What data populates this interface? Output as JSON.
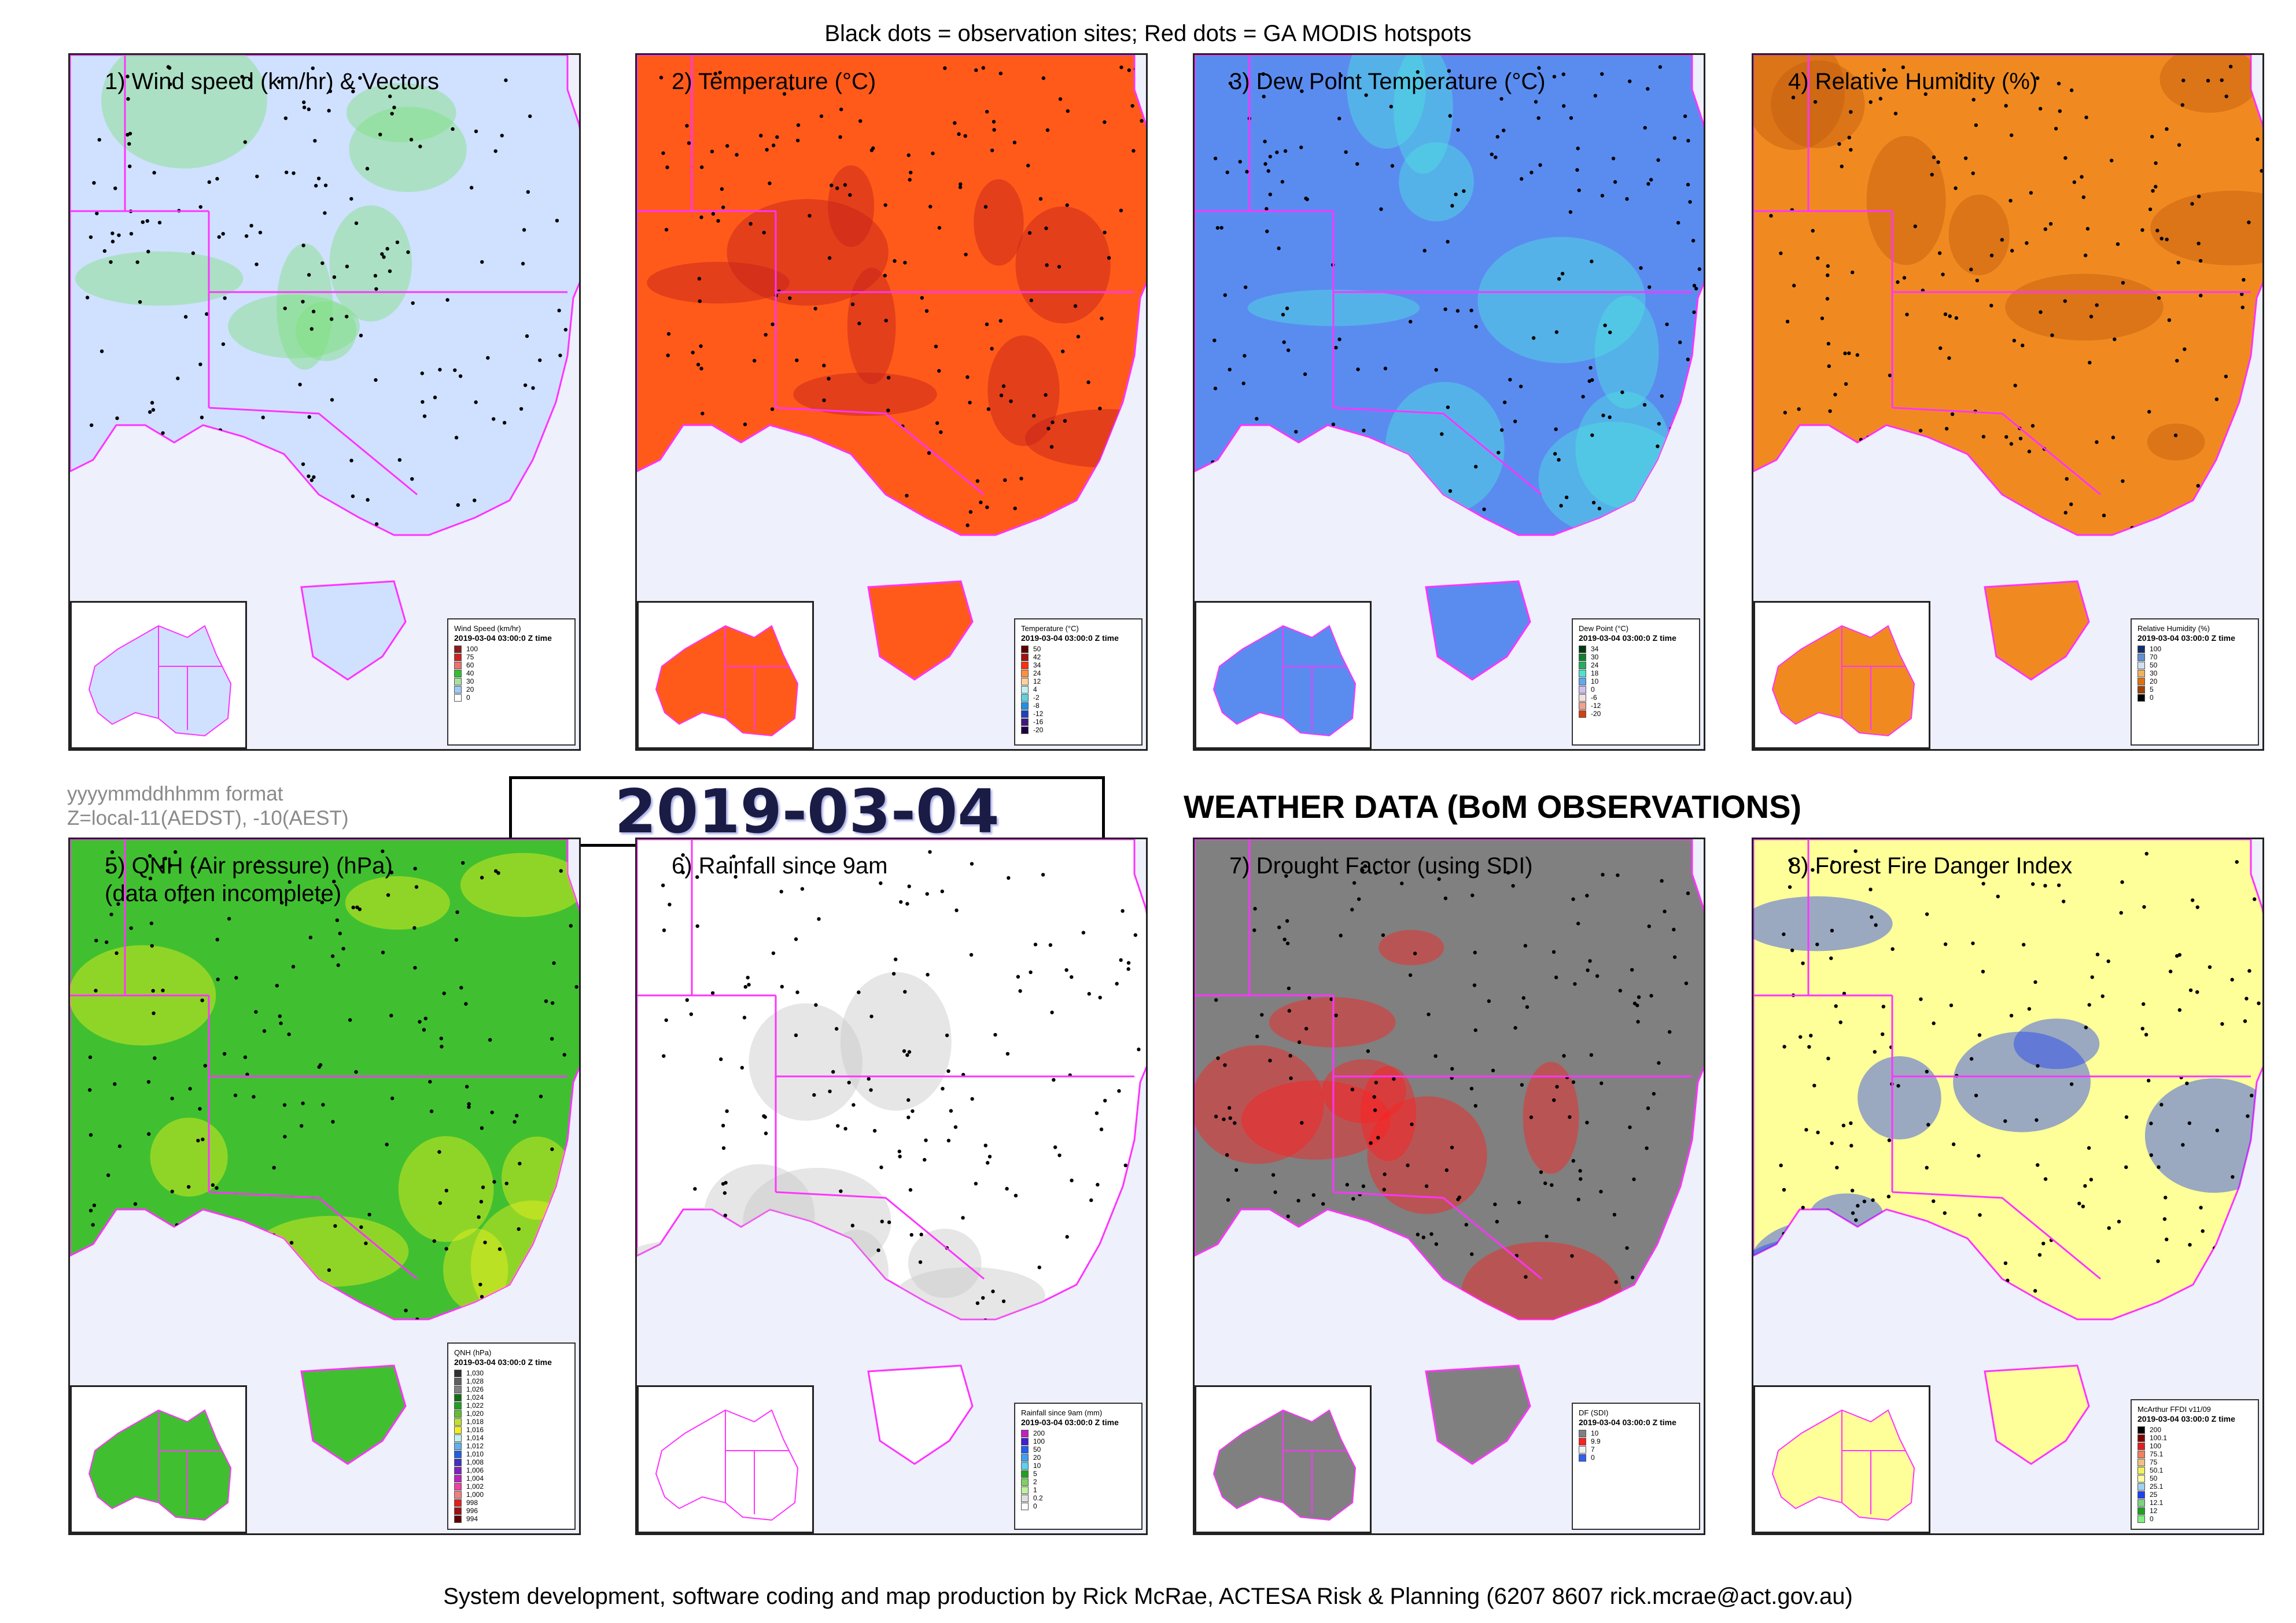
{
  "header": {
    "caption": "Black dots = observation sites; Red dots = GA MODIS hotspots"
  },
  "footer": {
    "credit": "System development, software coding and map production by Rick McRae, ACTESA Risk & Planning (6207 8607 rick.mcrae@act.gov.au)"
  },
  "datetime": {
    "stamp": "2019-03-04 03:00:0",
    "format_line1": "yyyymmddhhmm format",
    "format_line2": "Z=local-11(AEDST), -10(AEST)"
  },
  "heading": "WEATHER DATA (BoM OBSERVATIONS)",
  "colors": {
    "border": "#ff33ff",
    "land_blank": "#ffffff",
    "sea": "#eef0fb"
  },
  "panels": [
    {
      "id": "wind",
      "title": "1) Wind speed (km/hr) & Vectors",
      "fill": "#cfe1ff",
      "accent": "#7fe07f",
      "legend": {
        "title": "Wind Speed (km/hr)",
        "subtitle": "2019-03-04 03:00:0 Z time",
        "items": [
          {
            "label": "100",
            "color": "#8b1a1a"
          },
          {
            "label": "75",
            "color": "#d02020"
          },
          {
            "label": "60",
            "color": "#f07070"
          },
          {
            "label": "40",
            "color": "#30c030"
          },
          {
            "label": "30",
            "color": "#a8e0a0"
          },
          {
            "label": "20",
            "color": "#a0c8f8"
          },
          {
            "label": "0",
            "color": "#ffffff"
          }
        ]
      }
    },
    {
      "id": "temp",
      "title": "2) Temperature (°C)",
      "fill": "#ff5a1a",
      "accent": "#c0201a",
      "legend": {
        "title": "Temperature (°C)",
        "subtitle": "2019-03-04 03:00:0 Z time",
        "items": [
          {
            "label": "50",
            "color": "#5a0000"
          },
          {
            "label": "42",
            "color": "#a01010"
          },
          {
            "label": "34",
            "color": "#ff3010"
          },
          {
            "label": "24",
            "color": "#ff9040"
          },
          {
            "label": "12",
            "color": "#ffd0a0"
          },
          {
            "label": "4",
            "color": "#c0f0f0"
          },
          {
            "label": "-2",
            "color": "#60d0e0"
          },
          {
            "label": "-8",
            "color": "#2090e0"
          },
          {
            "label": "-12",
            "color": "#2040c0"
          },
          {
            "label": "-16",
            "color": "#401880"
          },
          {
            "label": "-20",
            "color": "#200040"
          }
        ]
      }
    },
    {
      "id": "dew",
      "title": "3) Dew Point Temperature (°C)",
      "fill": "#5a8cf0",
      "accent": "#50e0e0",
      "legend": {
        "title": "Dew Point (°C)",
        "subtitle": "2019-03-04 03:00:0 Z time",
        "items": [
          {
            "label": "34",
            "color": "#003a10"
          },
          {
            "label": "30",
            "color": "#108030"
          },
          {
            "label": "24",
            "color": "#20b060"
          },
          {
            "label": "18",
            "color": "#50e0d0"
          },
          {
            "label": "10",
            "color": "#60a8f0"
          },
          {
            "label": "0",
            "color": "#d0c0f0"
          },
          {
            "label": "-6",
            "color": "#f0e0e0"
          },
          {
            "label": "-12",
            "color": "#f0a090"
          },
          {
            "label": "-20",
            "color": "#d04010"
          }
        ]
      }
    },
    {
      "id": "rh",
      "title": "4) Relative Humidity (%)",
      "fill": "#f08a20",
      "accent": "#c05a10",
      "legend": {
        "title": "Relative Humidity (%)",
        "subtitle": "2019-03-04 03:00:0 Z time",
        "items": [
          {
            "label": "100",
            "color": "#103070"
          },
          {
            "label": "70",
            "color": "#6090d0"
          },
          {
            "label": "50",
            "color": "#d0e0f0"
          },
          {
            "label": "30",
            "color": "#f0b060"
          },
          {
            "label": "20",
            "color": "#e07010"
          },
          {
            "label": "5",
            "color": "#a04000"
          },
          {
            "label": "0",
            "color": "#000000"
          }
        ]
      }
    },
    {
      "id": "qnh",
      "title": "5) QNH (Air pressure) (hPa)\n(data often incomplete)",
      "fill": "#40c030",
      "accent": "#f0f020",
      "legend": {
        "title": "QNH (hPa)",
        "subtitle": "2019-03-04 03:00:0 Z time",
        "items": [
          {
            "label": "1,030",
            "color": "#303030"
          },
          {
            "label": "1,028",
            "color": "#606060"
          },
          {
            "label": "1,026",
            "color": "#808080"
          },
          {
            "label": "1,024",
            "color": "#107010"
          },
          {
            "label": "1,022",
            "color": "#20a020"
          },
          {
            "label": "1,020",
            "color": "#60c030"
          },
          {
            "label": "1,018",
            "color": "#c0e030"
          },
          {
            "label": "1,016",
            "color": "#f0f020"
          },
          {
            "label": "1,014",
            "color": "#c0f0f0"
          },
          {
            "label": "1,012",
            "color": "#60b0f0"
          },
          {
            "label": "1,010",
            "color": "#2060e0"
          },
          {
            "label": "1,008",
            "color": "#4030c0"
          },
          {
            "label": "1,006",
            "color": "#8020c0"
          },
          {
            "label": "1,004",
            "color": "#c020c0"
          },
          {
            "label": "1,002",
            "color": "#f040a0"
          },
          {
            "label": "1,000",
            "color": "#f08080"
          },
          {
            "label": "998",
            "color": "#e02020"
          },
          {
            "label": "996",
            "color": "#a01010"
          },
          {
            "label": "994",
            "color": "#600000"
          }
        ]
      }
    },
    {
      "id": "rain",
      "title": "6) Rainfall since 9am",
      "fill": "#ffffff",
      "accent": "#c8c8c8",
      "legend": {
        "title": "Rainfall since 9am (mm)",
        "subtitle": "2019-03-04 03:00:0 Z time",
        "items": [
          {
            "label": "200",
            "color": "#c020c0"
          },
          {
            "label": "100",
            "color": "#4020d0"
          },
          {
            "label": "50",
            "color": "#2060f0"
          },
          {
            "label": "20",
            "color": "#40a0f0"
          },
          {
            "label": "10",
            "color": "#60d0f0"
          },
          {
            "label": "5",
            "color": "#20a020"
          },
          {
            "label": "2",
            "color": "#80d060"
          },
          {
            "label": "1",
            "color": "#c0f0a0"
          },
          {
            "label": "0.2",
            "color": "#e0e0e0"
          },
          {
            "label": "0",
            "color": "#ffffff"
          }
        ]
      }
    },
    {
      "id": "df",
      "title": "7) Drought Factor (using SDI)",
      "fill": "#808080",
      "accent": "#ff2020",
      "legend": {
        "title": "DF (SDI)",
        "subtitle": "2019-03-04 03:00:0 Z time",
        "items": [
          {
            "label": "10",
            "color": "#808080"
          },
          {
            "label": "9.9",
            "color": "#ff2020"
          },
          {
            "label": "7",
            "color": "#f0f0f0"
          },
          {
            "label": "0",
            "color": "#3060f0"
          }
        ]
      }
    },
    {
      "id": "ffdi",
      "title": "8) Forest Fire Danger Index",
      "fill": "#ffff99",
      "accent": "#2040f0",
      "legend": {
        "title": "McArthur FFDI v11/09",
        "subtitle": "2019-03-04 03:00:0 Z time",
        "items": [
          {
            "label": "200",
            "color": "#000000"
          },
          {
            "label": "100.1",
            "color": "#800000"
          },
          {
            "label": "100",
            "color": "#e02020"
          },
          {
            "label": "75.1",
            "color": "#f08060"
          },
          {
            "label": "75",
            "color": "#f0c080"
          },
          {
            "label": "50.1",
            "color": "#f0f060"
          },
          {
            "label": "50",
            "color": "#ffffa0"
          },
          {
            "label": "25.1",
            "color": "#a0d0f0"
          },
          {
            "label": "25",
            "color": "#2040f0"
          },
          {
            "label": "12.1",
            "color": "#80d080"
          },
          {
            "label": "12",
            "color": "#20a020"
          },
          {
            "label": "0",
            "color": "#80f080"
          }
        ]
      }
    }
  ]
}
